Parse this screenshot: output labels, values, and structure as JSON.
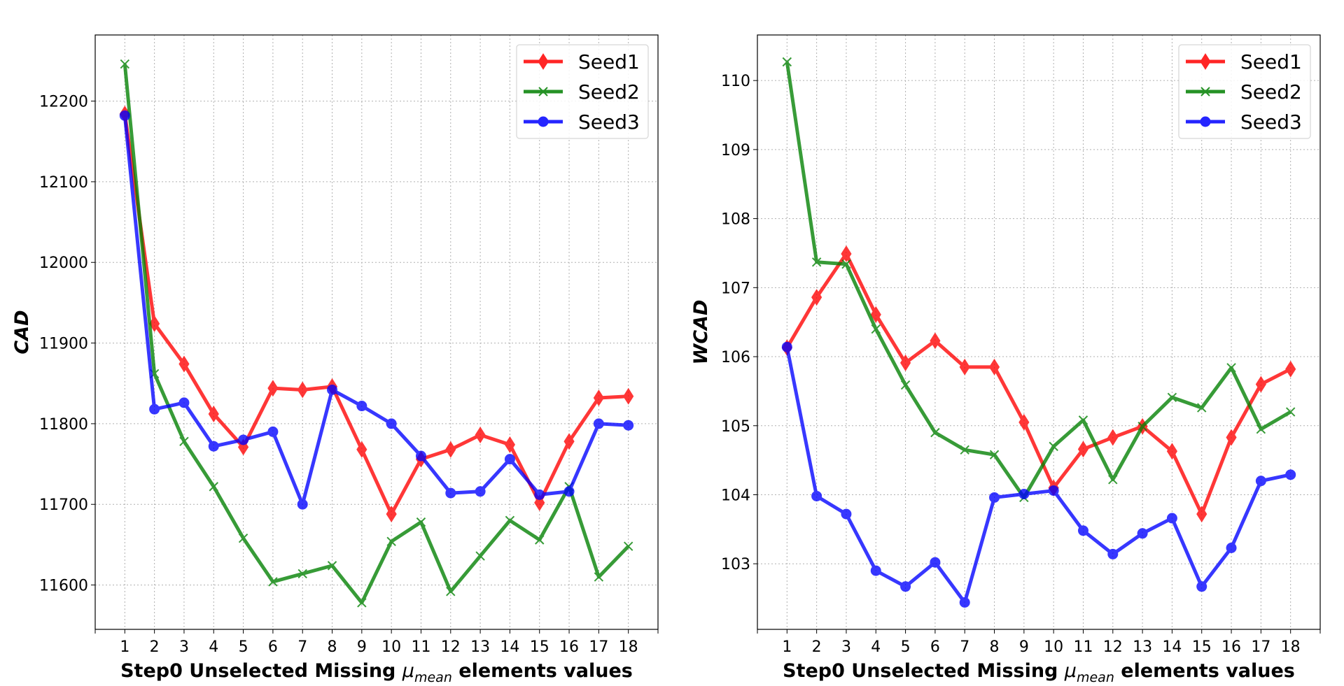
{
  "colors": {
    "Seed1": "#ff0000",
    "Seed2": "#008000",
    "Seed3": "#0000ff"
  },
  "chart_data": [
    {
      "type": "line",
      "title": "",
      "xlabel_prefix": "Step0 Unselected Missing ",
      "xlabel_math": "μ",
      "xlabel_sub": "mean",
      "xlabel_suffix": " elements values",
      "ylabel": "CAD",
      "x": [
        1,
        2,
        3,
        4,
        5,
        6,
        7,
        8,
        9,
        10,
        11,
        12,
        13,
        14,
        15,
        16,
        17,
        18
      ],
      "xlim": [
        0,
        19
      ],
      "ylim": [
        11545,
        12282
      ],
      "yticks": [
        11600,
        11700,
        11800,
        11900,
        12000,
        12100,
        12200
      ],
      "grid": true,
      "legend": "upper-right",
      "series": [
        {
          "name": "Seed1",
          "marker": "diamond",
          "values": [
            12184,
            11924,
            11874,
            11812,
            11771,
            11844,
            11842,
            11846,
            11768,
            11688,
            11756,
            11768,
            11786,
            11774,
            11702,
            11778,
            11832,
            11834
          ]
        },
        {
          "name": "Seed2",
          "marker": "x",
          "values": [
            12246,
            11862,
            11778,
            11722,
            11658,
            11604,
            11614,
            11624,
            11578,
            11654,
            11678,
            11592,
            11636,
            11680,
            11656,
            11722,
            11610,
            11648
          ]
        },
        {
          "name": "Seed3",
          "marker": "circle",
          "values": [
            12182,
            11818,
            11826,
            11772,
            11780,
            11790,
            11700,
            11842,
            11822,
            11800,
            11760,
            11714,
            11716,
            11756,
            11712,
            11716,
            11800,
            11798
          ]
        }
      ]
    },
    {
      "type": "line",
      "title": "",
      "xlabel_prefix": "Step0 Unselected Missing ",
      "xlabel_math": "μ",
      "xlabel_sub": "mean",
      "xlabel_suffix": " elements values",
      "ylabel": "WCAD",
      "x": [
        1,
        2,
        3,
        4,
        5,
        6,
        7,
        8,
        9,
        10,
        11,
        12,
        13,
        14,
        15,
        16,
        17,
        18
      ],
      "xlim": [
        0,
        19
      ],
      "ylim": [
        102.05,
        110.66
      ],
      "yticks": [
        103,
        104,
        105,
        106,
        107,
        108,
        109,
        110
      ],
      "grid": true,
      "legend": "upper-right",
      "series": [
        {
          "name": "Seed1",
          "marker": "diamond",
          "values": [
            106.13,
            106.86,
            107.49,
            106.61,
            105.91,
            106.23,
            105.85,
            105.85,
            105.05,
            104.1,
            104.66,
            104.83,
            104.99,
            104.63,
            103.72,
            104.83,
            105.6,
            105.82
          ]
        },
        {
          "name": "Seed2",
          "marker": "x",
          "values": [
            110.27,
            107.37,
            107.34,
            106.4,
            105.59,
            104.9,
            104.65,
            104.58,
            103.96,
            104.7,
            105.08,
            104.22,
            104.99,
            105.41,
            105.26,
            105.84,
            104.95,
            105.2
          ]
        },
        {
          "name": "Seed3",
          "marker": "circle",
          "values": [
            106.14,
            103.98,
            103.72,
            102.9,
            102.67,
            103.02,
            102.44,
            103.96,
            104.01,
            104.06,
            103.48,
            103.14,
            103.44,
            103.66,
            102.67,
            103.23,
            104.2,
            104.29
          ]
        }
      ]
    }
  ]
}
